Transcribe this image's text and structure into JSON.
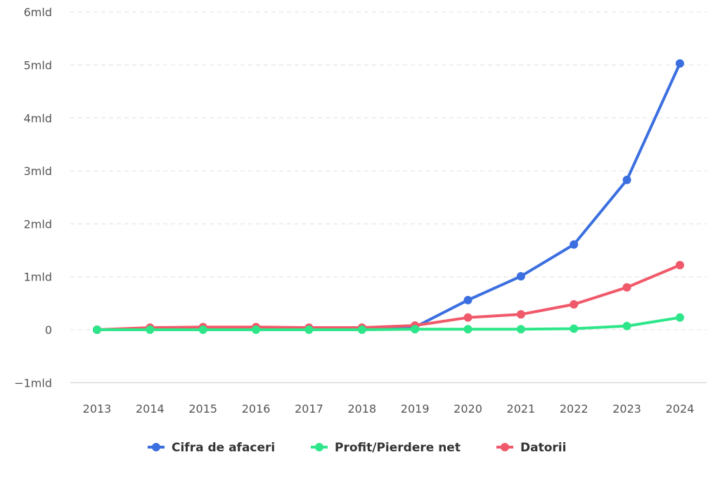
{
  "chart_data": {
    "type": "line",
    "title": "",
    "xlabel": "",
    "ylabel": "",
    "categories": [
      "2013",
      "2014",
      "2015",
      "2016",
      "2017",
      "2018",
      "2019",
      "2020",
      "2021",
      "2022",
      "2023",
      "2024"
    ],
    "y_ticks": [
      {
        "value": -1,
        "label": "−1mld"
      },
      {
        "value": 0,
        "label": "0"
      },
      {
        "value": 1,
        "label": "1mld"
      },
      {
        "value": 2,
        "label": "2mld"
      },
      {
        "value": 3,
        "label": "3mld"
      },
      {
        "value": 4,
        "label": "4mld"
      },
      {
        "value": 5,
        "label": "5mld"
      },
      {
        "value": 6,
        "label": "6mld"
      }
    ],
    "ylim": [
      -1,
      6
    ],
    "y_unit": "mld",
    "grid": "horizontal dashed",
    "legend_position": "bottom-center",
    "series": [
      {
        "name": "Cifra de afaceri",
        "color": "#3b6fe0",
        "values": [
          0,
          0.02,
          0.03,
          0.03,
          0.03,
          0.03,
          0.05,
          0.56,
          1.01,
          1.61,
          2.83,
          5.03
        ]
      },
      {
        "name": "Profit/Pierdere net",
        "color": "#2ee68a",
        "values": [
          0,
          0,
          0,
          0,
          0,
          0,
          0.01,
          0.01,
          0.01,
          0.02,
          0.07,
          0.23
        ]
      },
      {
        "name": "Datorii",
        "color": "#f0596a",
        "values": [
          0,
          0.04,
          0.05,
          0.05,
          0.04,
          0.04,
          0.08,
          0.23,
          0.29,
          0.48,
          0.8,
          1.22
        ]
      }
    ]
  }
}
